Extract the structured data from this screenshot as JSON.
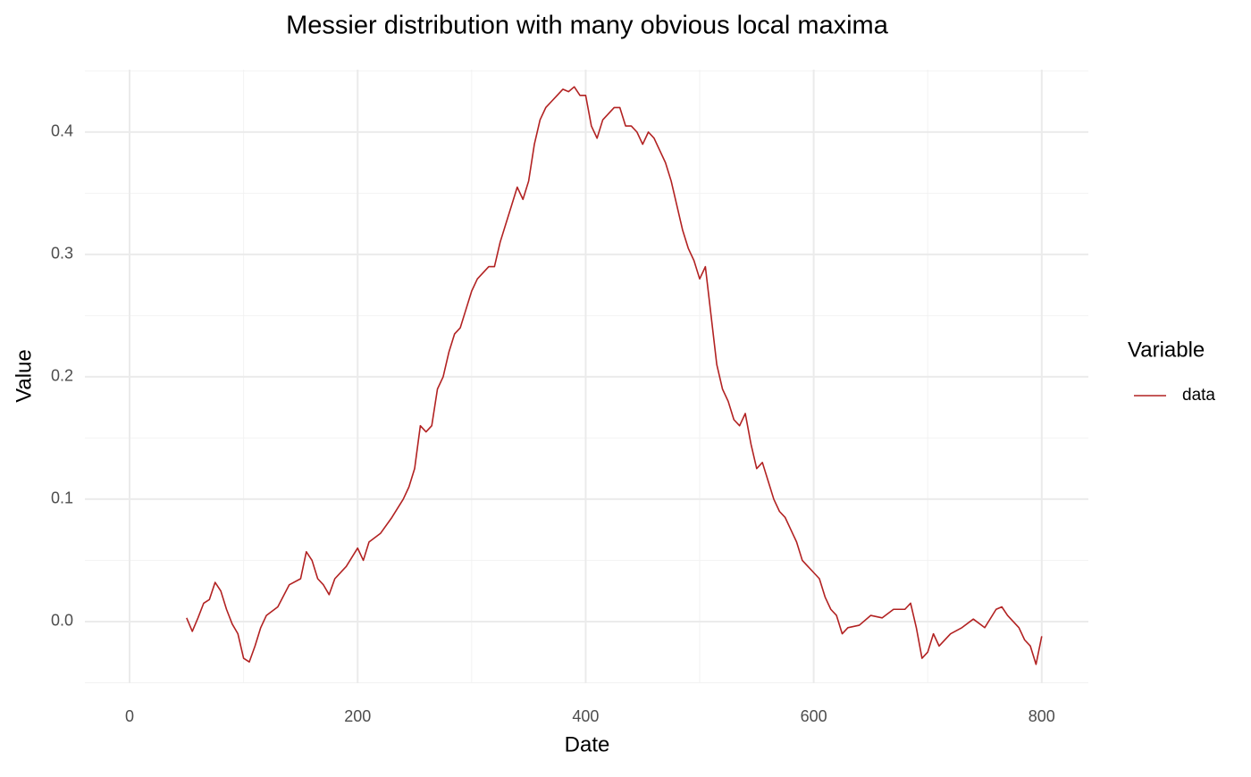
{
  "chart_data": {
    "type": "line",
    "title": "Messier distribution with many obvious local maxima",
    "x_label": "Date",
    "y_label": "Value",
    "legend_title": "Variable",
    "legend_position": "right",
    "grid": true,
    "xlim": [
      -39.2,
      840.9
    ],
    "xticks": [
      0,
      200,
      400,
      600,
      800
    ],
    "xminor": [
      100,
      300,
      500,
      700
    ],
    "ylim": [
      -0.0504,
      0.451
    ],
    "yticks": [
      {
        "value": 0,
        "label": "0.0"
      },
      0.1,
      0.2,
      0.3,
      0.4
    ],
    "yminor": [
      -0.05,
      0.05,
      0.15,
      0.25,
      0.35,
      0.45
    ],
    "x": [
      50,
      55,
      60,
      65,
      70,
      75,
      80,
      85,
      90,
      95,
      100,
      105,
      110,
      115,
      120,
      130,
      140,
      150,
      155,
      160,
      165,
      170,
      175,
      180,
      190,
      200,
      205,
      210,
      220,
      230,
      240,
      245,
      250,
      255,
      260,
      265,
      270,
      275,
      280,
      285,
      290,
      295,
      300,
      305,
      310,
      315,
      320,
      325,
      330,
      335,
      340,
      345,
      350,
      355,
      360,
      365,
      370,
      375,
      380,
      385,
      390,
      395,
      400,
      405,
      410,
      415,
      420,
      425,
      430,
      435,
      440,
      445,
      450,
      455,
      460,
      465,
      470,
      475,
      480,
      485,
      490,
      495,
      500,
      505,
      510,
      515,
      520,
      525,
      530,
      535,
      540,
      545,
      550,
      555,
      560,
      565,
      570,
      575,
      580,
      585,
      590,
      595,
      600,
      605,
      610,
      615,
      620,
      625,
      630,
      640,
      650,
      660,
      670,
      680,
      685,
      690,
      695,
      700,
      705,
      710,
      720,
      730,
      740,
      750,
      760,
      765,
      770,
      775,
      780,
      785,
      790,
      795,
      800
    ],
    "series": [
      {
        "name": "data",
        "color": "#b22222",
        "values": [
          0.003,
          -0.008,
          0.003,
          0.015,
          0.018,
          0.032,
          0.025,
          0.01,
          -0.002,
          -0.01,
          -0.03,
          -0.033,
          -0.02,
          -0.005,
          0.005,
          0.012,
          0.03,
          0.035,
          0.057,
          0.05,
          0.035,
          0.03,
          0.022,
          0.035,
          0.045,
          0.06,
          0.05,
          0.065,
          0.072,
          0.085,
          0.1,
          0.11,
          0.125,
          0.16,
          0.155,
          0.16,
          0.19,
          0.2,
          0.22,
          0.235,
          0.24,
          0.255,
          0.27,
          0.28,
          0.285,
          0.29,
          0.29,
          0.31,
          0.325,
          0.34,
          0.355,
          0.345,
          0.36,
          0.39,
          0.41,
          0.42,
          0.425,
          0.43,
          0.435,
          0.433,
          0.437,
          0.43,
          0.43,
          0.405,
          0.395,
          0.41,
          0.415,
          0.42,
          0.42,
          0.405,
          0.405,
          0.4,
          0.39,
          0.4,
          0.395,
          0.385,
          0.375,
          0.36,
          0.34,
          0.32,
          0.305,
          0.295,
          0.28,
          0.29,
          0.25,
          0.21,
          0.19,
          0.18,
          0.165,
          0.16,
          0.17,
          0.145,
          0.125,
          0.13,
          0.115,
          0.1,
          0.09,
          0.085,
          0.075,
          0.065,
          0.05,
          0.045,
          0.04,
          0.035,
          0.02,
          0.01,
          0.005,
          -0.01,
          -0.005,
          -0.003,
          0.005,
          0.003,
          0.01,
          0.01,
          0.015,
          -0.005,
          -0.03,
          -0.025,
          -0.01,
          -0.02,
          -0.01,
          -0.005,
          0.002,
          -0.005,
          0.01,
          0.012,
          0.005,
          0.0,
          -0.005,
          -0.015,
          -0.02,
          -0.035,
          -0.012
        ]
      }
    ]
  }
}
